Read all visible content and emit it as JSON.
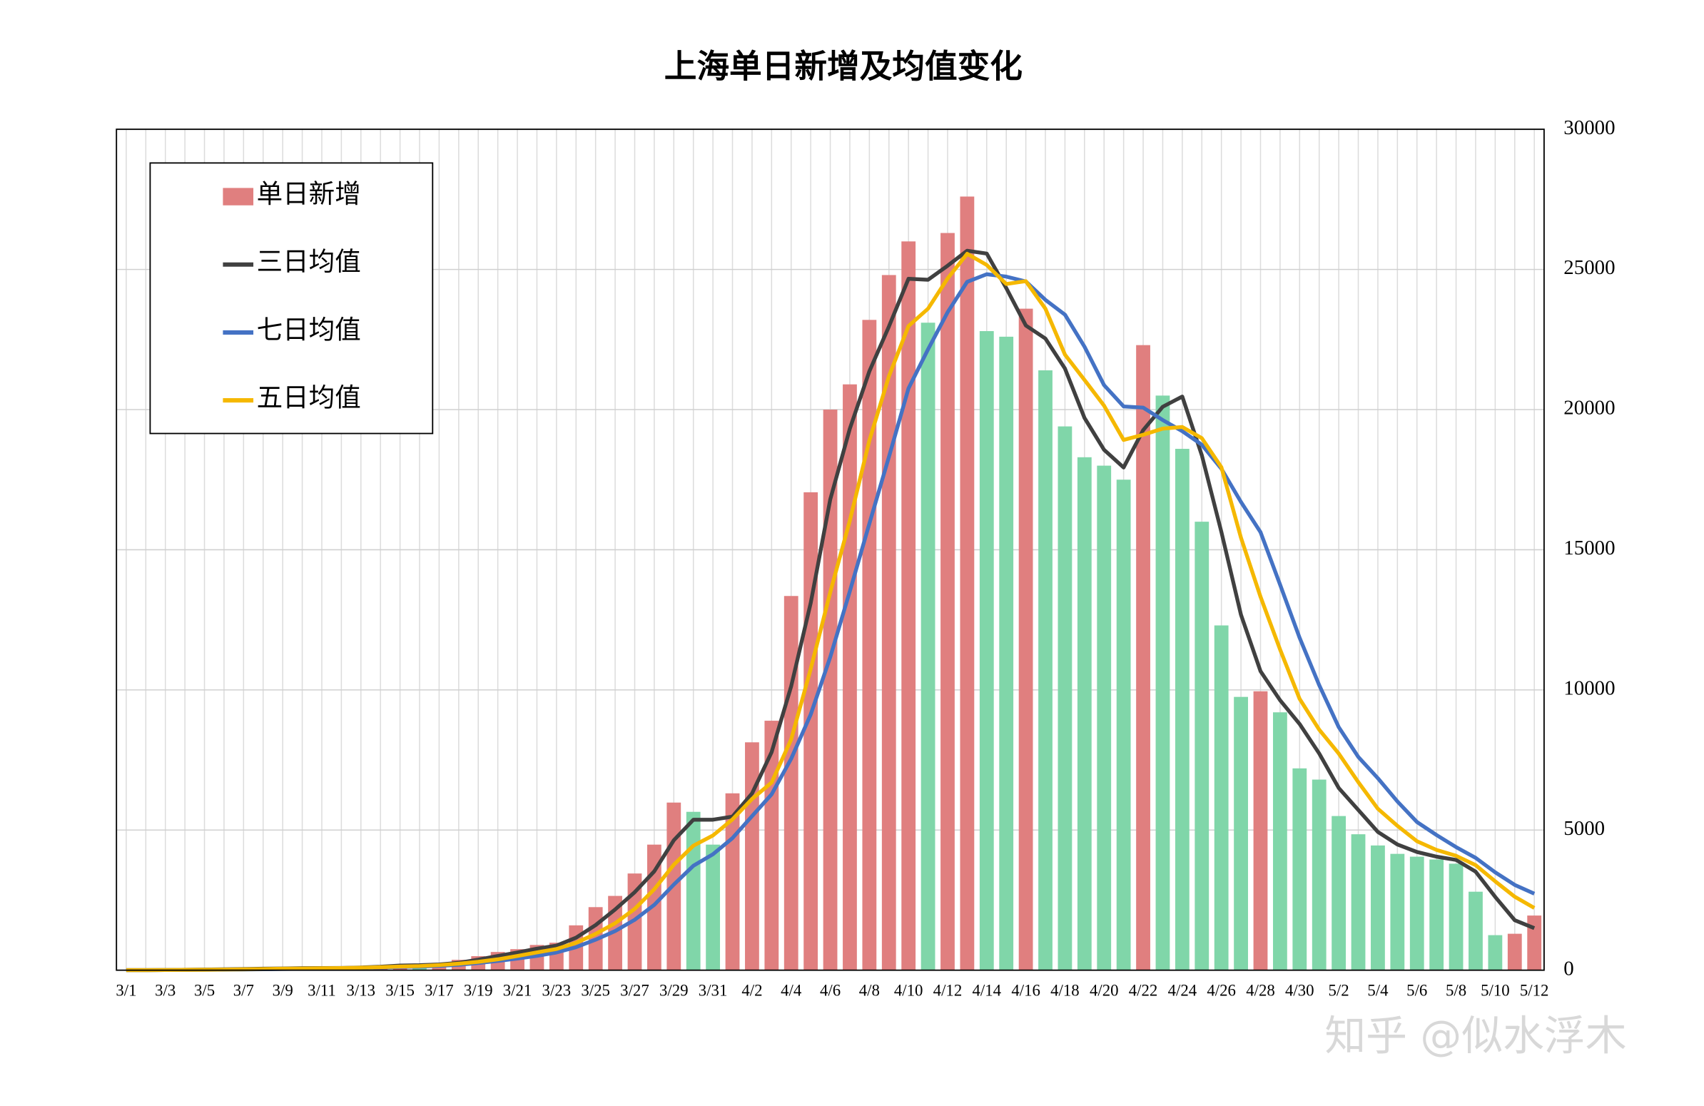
{
  "chart_data": {
    "type": "bar_line",
    "title": "上海单日新增及均值变化",
    "watermark": "知乎 @似水浮木",
    "categories": [
      "3/1",
      null,
      "3/3",
      null,
      "3/5",
      null,
      "3/7",
      null,
      "3/9",
      null,
      "3/11",
      null,
      "3/13",
      null,
      "3/15",
      null,
      "3/17",
      null,
      "3/19",
      null,
      "3/21",
      null,
      "3/23",
      null,
      "3/25",
      null,
      "3/27",
      null,
      "3/29",
      null,
      "3/31",
      null,
      "4/2",
      null,
      "4/4",
      null,
      "4/6",
      null,
      "4/8",
      null,
      "4/10",
      null,
      "4/12",
      null,
      "4/14",
      null,
      "4/16",
      null,
      "4/18",
      null,
      "4/20",
      null,
      "4/22",
      null,
      "4/24",
      null,
      "4/26",
      null,
      "4/28",
      null,
      "4/30",
      null,
      "5/2",
      null,
      "5/4",
      null,
      "5/6",
      null,
      "5/8",
      null,
      "5/10",
      null,
      "5/12"
    ],
    "series": [
      {
        "name": "单日新增",
        "kind": "bar",
        "color": "#e07f7f",
        "decrease_color": "#80d6a9",
        "values": [
          2,
          8,
          16,
          19,
          30,
          45,
          50,
          65,
          75,
          80,
          83,
          76,
          130,
          170,
          200,
          160,
          260,
          370,
          500,
          650,
          750,
          900,
          980,
          1600,
          2250,
          2650,
          3450,
          4480,
          5980,
          5650,
          4480,
          6310,
          8130,
          8900,
          13350,
          17050,
          20000,
          20900,
          23200,
          24800,
          26000,
          23100,
          26300,
          27600,
          22800,
          22600,
          23600,
          21400,
          19400,
          18300,
          18000,
          17500,
          22300,
          20500,
          18600,
          16000,
          12300,
          9750,
          9950,
          9200,
          7200,
          6800,
          5500,
          4850,
          4450,
          4150,
          4050,
          3950,
          3800,
          2800,
          1250,
          1300,
          1950
        ]
      },
      {
        "name": "三日均值",
        "kind": "line",
        "color": "#404040",
        "values": [
          2,
          5,
          9,
          14,
          22,
          31,
          42,
          53,
          63,
          73,
          79,
          80,
          96,
          125,
          167,
          177,
          207,
          263,
          377,
          507,
          633,
          767,
          877,
          1160,
          1610,
          2167,
          2783,
          3527,
          4637,
          5370,
          5370,
          5480,
          6307,
          7780,
          10127,
          13100,
          16800,
          19317,
          21367,
          22967,
          24667,
          24633,
          25133,
          25667,
          25567,
          24333,
          23000,
          22533,
          21467,
          19700,
          18567,
          17933,
          19267,
          20100,
          20467,
          18367,
          15633,
          12683,
          10667,
          9633,
          8783,
          7733,
          6500,
          5717,
          4933,
          4483,
          4217,
          4050,
          3933,
          3517,
          2617,
          1783,
          1500
        ]
      },
      {
        "name": "七日均值",
        "kind": "line",
        "color": "#4472c4",
        "values": [
          2,
          5,
          9,
          11,
          15,
          20,
          24,
          33,
          43,
          52,
          61,
          68,
          80,
          97,
          116,
          128,
          154,
          195,
          256,
          330,
          413,
          513,
          630,
          821,
          1090,
          1397,
          1797,
          2330,
          3056,
          3723,
          4134,
          4714,
          5497,
          6276,
          7543,
          9124,
          11174,
          13520,
          15933,
          18314,
          20757,
          22150,
          23471,
          24557,
          24829,
          24743,
          24571,
          23914,
          23386,
          22243,
          20871,
          20114,
          20071,
          19629,
          19229,
          18743,
          17886,
          16707,
          15629,
          13757,
          11857,
          10171,
          8671,
          7607,
          6850,
          6021,
          5286,
          4821,
          4393,
          4007,
          3493,
          3043,
          2729
        ]
      },
      {
        "name": "五日均值",
        "kind": "line",
        "color": "#f5b800",
        "values": [
          2,
          5,
          9,
          11,
          15,
          24,
          32,
          42,
          53,
          63,
          71,
          76,
          89,
          108,
          132,
          147,
          184,
          232,
          298,
          388,
          506,
          634,
          756,
          976,
          1296,
          1676,
          2186,
          2886,
          3762,
          4442,
          4808,
          5380,
          6110,
          6694,
          8234,
          10748,
          13486,
          16040,
          18900,
          21190,
          22980,
          23600,
          24680,
          25560,
          25160,
          24480,
          24580,
          23600,
          21960,
          21060,
          20140,
          18920,
          19100,
          19320,
          19380,
          18980,
          17940,
          15430,
          13320,
          11440,
          9680,
          8580,
          7730,
          6710,
          5760,
          5150,
          4600,
          4290,
          4080,
          3750,
          3170,
          2620,
          2220
        ]
      }
    ],
    "ylim": [
      0,
      30000
    ],
    "yticks": [
      0,
      5000,
      10000,
      15000,
      20000,
      25000,
      30000
    ],
    "y_axis_side": "right",
    "grid": true,
    "legend": "upper left"
  }
}
